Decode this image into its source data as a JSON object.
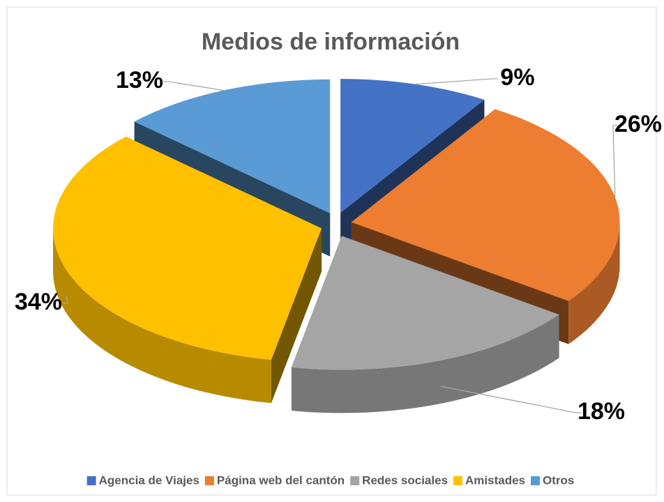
{
  "chart_data": {
    "type": "pie",
    "title": "Medios de información",
    "categories": [
      "Agencia de Viajes",
      "Página web del cantón",
      "Redes sociales",
      "Amistades",
      "Otros"
    ],
    "values": [
      9,
      26,
      18,
      34,
      13
    ],
    "value_labels": [
      "9%",
      "26%",
      "18%",
      "34%",
      "13%"
    ],
    "colors": [
      "#4472c4",
      "#ed7d31",
      "#a5a5a5",
      "#ffc000",
      "#5b9bd5"
    ],
    "legend": "bottom"
  }
}
